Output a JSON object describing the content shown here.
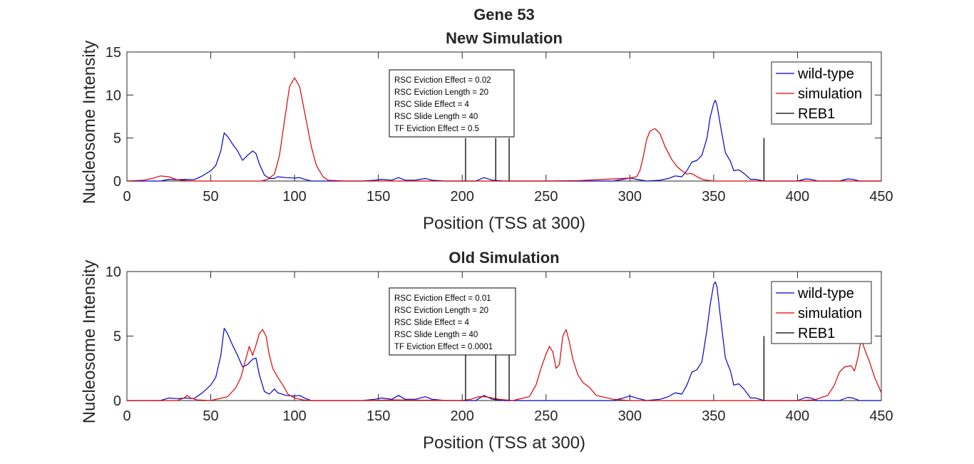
{
  "figure_title": "Gene 53",
  "colors": {
    "wild_type": "#0000cc",
    "simulation": "#dd0000",
    "reb1": "#000000"
  },
  "chart_data": [
    {
      "type": "line",
      "title": "New Simulation",
      "xlabel": "Position (TSS at 300)",
      "ylabel": "Nucleosome Intensity",
      "xlim": [
        0,
        450
      ],
      "ylim": [
        0,
        15
      ],
      "xticks": [
        "0",
        "50",
        "100",
        "150",
        "200",
        "250",
        "300",
        "350",
        "400",
        "450"
      ],
      "yticks": [
        "0",
        "5",
        "10",
        "15"
      ],
      "legend": [
        "wild-type",
        "simulation",
        "REB1"
      ],
      "legend_position": "top-right",
      "annotation": [
        "RSC Eviction Effect = 0.02",
        "RSC Eviction Length = 20",
        "RSC Slide Effect = 4",
        "RSC Slide Length = 40",
        "TF Eviction Effect = 0.5"
      ],
      "series": [
        {
          "name": "wild-type",
          "x": [
            0,
            20,
            25,
            30,
            35,
            40,
            45,
            50,
            53,
            56,
            58,
            60,
            63,
            66,
            69,
            72,
            75,
            77,
            79,
            82,
            85,
            88,
            90,
            95,
            100,
            103,
            106,
            110,
            115,
            120,
            140,
            148,
            152,
            158,
            162,
            166,
            172,
            178,
            182,
            190,
            208,
            213,
            218,
            225,
            260,
            290,
            296,
            300,
            304,
            310,
            318,
            323,
            327,
            331,
            334,
            337,
            340,
            343,
            346,
            348,
            350,
            351,
            352,
            354,
            357,
            360,
            362,
            365,
            368,
            372,
            375,
            380,
            400,
            405,
            408,
            412,
            425,
            430,
            433,
            437,
            450
          ],
          "y": [
            0,
            0,
            0.2,
            0.15,
            0.2,
            0.15,
            0.6,
            1.2,
            1.8,
            3.5,
            5.6,
            5.2,
            4.3,
            3.5,
            2.4,
            3,
            3.5,
            3.2,
            2,
            0.7,
            0.3,
            0.3,
            0.5,
            0.4,
            0.35,
            0.4,
            0.2,
            0,
            0,
            0,
            0,
            0.1,
            0.2,
            0.1,
            0.4,
            0.1,
            0.1,
            0.3,
            0.1,
            0,
            0,
            0.4,
            0.1,
            0,
            0,
            0,
            0.2,
            0.35,
            0.2,
            0,
            0.1,
            0.3,
            0.6,
            0.5,
            1.2,
            2.2,
            2.4,
            3,
            5,
            7.5,
            9,
            9.4,
            8.8,
            6.5,
            3.3,
            2.3,
            1.2,
            1.3,
            0.9,
            0.2,
            0.2,
            0,
            0,
            0.25,
            0.2,
            0,
            0,
            0.25,
            0.2,
            0,
            0
          ]
        },
        {
          "name": "simulation",
          "x": [
            0,
            10,
            15,
            20,
            25,
            30,
            35,
            40,
            50,
            60,
            70,
            75,
            80,
            84,
            88,
            91,
            94,
            97,
            100,
            103,
            106,
            110,
            113,
            117,
            120,
            130,
            200,
            250,
            270,
            290,
            300,
            304,
            306,
            308,
            310,
            312,
            315,
            318,
            321,
            325,
            328,
            331,
            334,
            336,
            338,
            341,
            344,
            350,
            360,
            380,
            450
          ],
          "y": [
            0,
            0.1,
            0.3,
            0.6,
            0.5,
            0.15,
            0.05,
            0,
            0,
            0,
            0,
            0,
            0,
            0.2,
            0.8,
            3,
            7,
            11,
            12,
            11,
            8,
            4,
            1.8,
            0.5,
            0.1,
            0,
            0,
            0,
            0.05,
            0.25,
            0.35,
            0.5,
            1.2,
            2.8,
            4.8,
            5.8,
            6.1,
            5.5,
            4,
            2.5,
            1.7,
            1.2,
            0.8,
            0.9,
            0.75,
            0.4,
            0.15,
            0,
            0,
            0,
            0
          ]
        },
        {
          "name": "REB1",
          "spikes": [
            {
              "x": 202,
              "y": 5
            },
            {
              "x": 220,
              "y": 5
            },
            {
              "x": 228,
              "y": 5
            },
            {
              "x": 380,
              "y": 5
            }
          ]
        }
      ]
    },
    {
      "type": "line",
      "title": "Old Simulation",
      "xlabel": "Position (TSS at 300)",
      "ylabel": "Nucleosome Intensity",
      "xlim": [
        0,
        450
      ],
      "ylim": [
        0,
        10
      ],
      "xticks": [
        "0",
        "50",
        "100",
        "150",
        "200",
        "250",
        "300",
        "350",
        "400",
        "450"
      ],
      "yticks": [
        "0",
        "5",
        "10"
      ],
      "legend": [
        "wild-type",
        "simulation",
        "REB1"
      ],
      "legend_position": "top-right",
      "annotation": [
        "RSC Eviction Effect = 0.01",
        "RSC Eviction Length = 20",
        "RSC Slide Effect = 4",
        "RSC Slide Length = 40",
        "TF Eviction Effect = 0.0001"
      ],
      "series": [
        {
          "name": "wild-type",
          "x": [
            0,
            20,
            25,
            30,
            35,
            40,
            45,
            50,
            53,
            56,
            58,
            60,
            63,
            66,
            69,
            72,
            75,
            77,
            79,
            82,
            85,
            88,
            90,
            95,
            100,
            103,
            106,
            110,
            115,
            120,
            140,
            148,
            152,
            158,
            162,
            166,
            172,
            178,
            182,
            190,
            208,
            213,
            218,
            225,
            260,
            290,
            296,
            300,
            304,
            310,
            318,
            323,
            327,
            331,
            334,
            337,
            340,
            343,
            346,
            348,
            350,
            351,
            352,
            354,
            357,
            360,
            362,
            365,
            368,
            372,
            375,
            380,
            400,
            405,
            408,
            412,
            425,
            430,
            433,
            437,
            450
          ],
          "y": [
            0,
            0,
            0.2,
            0.15,
            0.2,
            0.15,
            0.6,
            1.2,
            1.8,
            3.5,
            5.6,
            5.2,
            4.3,
            3.5,
            2.6,
            2.8,
            3.2,
            3.3,
            2,
            0.7,
            0.5,
            0.9,
            0.6,
            0.4,
            0.35,
            0.4,
            0.2,
            0,
            0,
            0,
            0,
            0.1,
            0.2,
            0.1,
            0.4,
            0.1,
            0.1,
            0.3,
            0.1,
            0,
            0,
            0.4,
            0.1,
            0,
            0,
            0,
            0.2,
            0.35,
            0.2,
            0,
            0.1,
            0.3,
            0.6,
            0.5,
            1.2,
            2.2,
            2.4,
            3,
            5.5,
            7.5,
            9,
            9.2,
            8.8,
            6.5,
            3.3,
            2.3,
            1.2,
            1.3,
            0.9,
            0.2,
            0.2,
            0,
            0,
            0.25,
            0.2,
            0,
            0,
            0.25,
            0.2,
            0,
            0
          ]
        },
        {
          "name": "simulation",
          "x": [
            0,
            30,
            34,
            36,
            38,
            42,
            50,
            60,
            65,
            68,
            70,
            73,
            75,
            77,
            79,
            81,
            83,
            85,
            87,
            90,
            93,
            96,
            100,
            105,
            110,
            140,
            160,
            200,
            205,
            210,
            214,
            218,
            222,
            230,
            240,
            244,
            247,
            250,
            252,
            254,
            256,
            258,
            260,
            262,
            264,
            266,
            269,
            272,
            276,
            280,
            290,
            300,
            380,
            400,
            410,
            418,
            422,
            425,
            428,
            432,
            434,
            436,
            438,
            440,
            443,
            446,
            450
          ],
          "y": [
            0,
            0,
            0.2,
            0.4,
            0.2,
            0.05,
            0,
            0.3,
            1,
            1.8,
            2.8,
            4.2,
            3.5,
            4.3,
            5.2,
            5.5,
            5,
            3.5,
            2.5,
            1.8,
            1.2,
            0.5,
            0.2,
            0.05,
            0,
            0,
            0.05,
            0,
            0.1,
            0.3,
            0.3,
            0.2,
            0.1,
            0,
            0.3,
            1.2,
            2.5,
            3.6,
            4.2,
            3.8,
            2.5,
            2.8,
            5,
            5.5,
            4.5,
            3.2,
            2,
            1.4,
            1,
            0.4,
            0.1,
            0,
            0,
            0,
            0.05,
            0.4,
            1.2,
            2.2,
            2.6,
            2.7,
            2.3,
            3.3,
            4.8,
            4,
            3,
            1.8,
            0.6
          ]
        },
        {
          "name": "REB1",
          "spikes": [
            {
              "x": 202,
              "y": 5
            },
            {
              "x": 220,
              "y": 5
            },
            {
              "x": 228,
              "y": 5
            },
            {
              "x": 380,
              "y": 5
            }
          ]
        }
      ]
    }
  ]
}
